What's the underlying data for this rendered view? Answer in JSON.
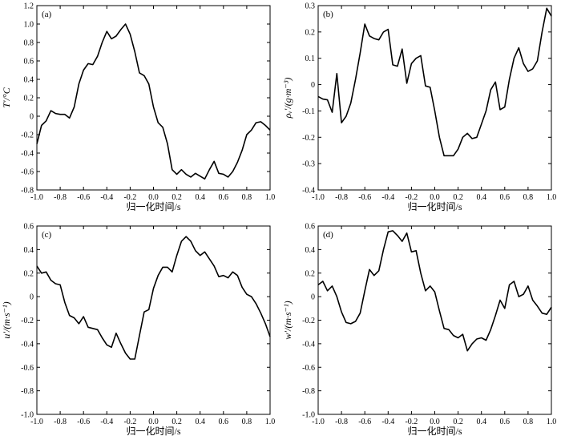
{
  "chart_data": [
    {
      "type": "line",
      "panel_label": "(a)",
      "xlabel": "归一化时间/s",
      "ylabel": "T′/°C",
      "xlim": [
        -1.0,
        1.0
      ],
      "ylim": [
        -0.8,
        1.2
      ],
      "xticks": [
        "-1.0",
        "-0.8",
        "-0.6",
        "-0.4",
        "-0.2",
        "0.0",
        "0.2",
        "0.4",
        "0.6",
        "0.8",
        "1.0"
      ],
      "yticks": [
        "-0.8",
        "-0.6",
        "-0.4",
        "-0.2",
        "0",
        "0.2",
        "0.4",
        "0.6",
        "0.8",
        "1.0",
        "1.2"
      ],
      "grid": false,
      "x": [
        -1.0,
        -0.96,
        -0.92,
        -0.88,
        -0.84,
        -0.8,
        -0.76,
        -0.72,
        -0.68,
        -0.64,
        -0.6,
        -0.56,
        -0.52,
        -0.48,
        -0.44,
        -0.4,
        -0.36,
        -0.32,
        -0.28,
        -0.24,
        -0.2,
        -0.16,
        -0.12,
        -0.08,
        -0.04,
        0.0,
        0.04,
        0.08,
        0.12,
        0.16,
        0.2,
        0.24,
        0.28,
        0.32,
        0.36,
        0.4,
        0.44,
        0.48,
        0.52,
        0.56,
        0.6,
        0.64,
        0.68,
        0.72,
        0.76,
        0.8,
        0.84,
        0.88,
        0.92,
        0.96,
        1.0
      ],
      "y": [
        -0.3,
        -0.1,
        -0.05,
        0.06,
        0.03,
        0.02,
        0.02,
        -0.02,
        0.1,
        0.35,
        0.5,
        0.57,
        0.56,
        0.65,
        0.8,
        0.92,
        0.84,
        0.87,
        0.94,
        1.0,
        0.89,
        0.7,
        0.47,
        0.44,
        0.35,
        0.1,
        -0.07,
        -0.12,
        -0.3,
        -0.58,
        -0.63,
        -0.58,
        -0.63,
        -0.66,
        -0.62,
        -0.65,
        -0.68,
        -0.58,
        -0.49,
        -0.62,
        -0.63,
        -0.66,
        -0.6,
        -0.5,
        -0.37,
        -0.2,
        -0.15,
        -0.07,
        -0.06,
        -0.1,
        -0.15
      ]
    },
    {
      "type": "line",
      "panel_label": "(b)",
      "xlabel": "归一化时间/s",
      "ylabel": "ρᵥ′/(g·m⁻³)",
      "xlim": [
        -1.0,
        1.0
      ],
      "ylim": [
        -0.4,
        0.3
      ],
      "xticks": [
        "-1.0",
        "-0.8",
        "-0.6",
        "-0.4",
        "-0.2",
        "0.0",
        "0.2",
        "0.4",
        "0.6",
        "0.8",
        "1.0"
      ],
      "yticks": [
        "-0.4",
        "-0.3",
        "-0.2",
        "-0.1",
        "0",
        "0.1",
        "0.2",
        "0.3"
      ],
      "grid": false,
      "x": [
        -1.0,
        -0.96,
        -0.92,
        -0.88,
        -0.84,
        -0.8,
        -0.76,
        -0.72,
        -0.68,
        -0.64,
        -0.6,
        -0.56,
        -0.52,
        -0.48,
        -0.44,
        -0.4,
        -0.36,
        -0.32,
        -0.28,
        -0.24,
        -0.2,
        -0.16,
        -0.12,
        -0.08,
        -0.04,
        0.0,
        0.04,
        0.08,
        0.12,
        0.16,
        0.2,
        0.24,
        0.28,
        0.32,
        0.36,
        0.4,
        0.44,
        0.48,
        0.52,
        0.56,
        0.6,
        0.64,
        0.68,
        0.72,
        0.76,
        0.8,
        0.84,
        0.88,
        0.92,
        0.96,
        1.0
      ],
      "y": [
        -0.045,
        -0.055,
        -0.058,
        -0.105,
        0.042,
        -0.145,
        -0.12,
        -0.07,
        0.02,
        0.12,
        0.23,
        0.185,
        0.175,
        0.17,
        0.2,
        0.21,
        0.075,
        0.07,
        0.135,
        0.005,
        0.08,
        0.1,
        0.11,
        -0.005,
        -0.01,
        -0.1,
        -0.2,
        -0.27,
        -0.27,
        -0.27,
        -0.245,
        -0.2,
        -0.185,
        -0.205,
        -0.2,
        -0.15,
        -0.1,
        -0.02,
        0.01,
        -0.095,
        -0.085,
        0.02,
        0.1,
        0.14,
        0.08,
        0.05,
        0.06,
        0.09,
        0.2,
        0.29,
        0.26
      ]
    },
    {
      "type": "line",
      "panel_label": "(c)",
      "xlabel": "归一化时间/s",
      "ylabel": "u′/(m·s⁻¹)",
      "xlim": [
        -1.0,
        1.0
      ],
      "ylim": [
        -1.0,
        0.6
      ],
      "xticks": [
        "-1.0",
        "-0.8",
        "-0.6",
        "-0.4",
        "-0.2",
        "0.0",
        "0.2",
        "0.4",
        "0.6",
        "0.8",
        "1.0"
      ],
      "yticks": [
        "-1.0",
        "-0.8",
        "-0.6",
        "-0.4",
        "-0.2",
        "0",
        "0.2",
        "0.4",
        "0.6"
      ],
      "grid": false,
      "x": [
        -1.0,
        -0.96,
        -0.92,
        -0.88,
        -0.84,
        -0.8,
        -0.76,
        -0.72,
        -0.68,
        -0.64,
        -0.6,
        -0.56,
        -0.52,
        -0.48,
        -0.44,
        -0.4,
        -0.36,
        -0.32,
        -0.28,
        -0.24,
        -0.2,
        -0.16,
        -0.12,
        -0.08,
        -0.04,
        0.0,
        0.04,
        0.08,
        0.12,
        0.16,
        0.2,
        0.24,
        0.28,
        0.32,
        0.36,
        0.4,
        0.44,
        0.48,
        0.52,
        0.56,
        0.6,
        0.64,
        0.68,
        0.72,
        0.76,
        0.8,
        0.84,
        0.88,
        0.92,
        0.96,
        1.0
      ],
      "y": [
        0.26,
        0.2,
        0.21,
        0.14,
        0.11,
        0.1,
        -0.05,
        -0.16,
        -0.18,
        -0.23,
        -0.17,
        -0.26,
        -0.27,
        -0.28,
        -0.35,
        -0.41,
        -0.43,
        -0.31,
        -0.4,
        -0.48,
        -0.53,
        -0.53,
        -0.33,
        -0.13,
        -0.11,
        0.07,
        0.18,
        0.25,
        0.25,
        0.21,
        0.35,
        0.47,
        0.51,
        0.47,
        0.39,
        0.35,
        0.38,
        0.32,
        0.26,
        0.17,
        0.18,
        0.16,
        0.21,
        0.18,
        0.08,
        0.02,
        0.0,
        -0.06,
        -0.14,
        -0.23,
        -0.34
      ]
    },
    {
      "type": "line",
      "panel_label": "(d)",
      "xlabel": "归一化时间/s",
      "ylabel": "w′/(m·s⁻¹)",
      "xlim": [
        -1.0,
        1.0
      ],
      "ylim": [
        -1.0,
        0.6
      ],
      "xticks": [
        "-1.0",
        "-0.8",
        "-0.6",
        "-0.4",
        "-0.2",
        "0.0",
        "0.2",
        "0.4",
        "0.6",
        "0.8",
        "1.0"
      ],
      "yticks": [
        "-1.0",
        "-0.8",
        "-0.6",
        "-0.4",
        "-0.2",
        "0",
        "0.2",
        "0.4",
        "0.6"
      ],
      "grid": false,
      "x": [
        -1.0,
        -0.96,
        -0.92,
        -0.88,
        -0.84,
        -0.8,
        -0.76,
        -0.72,
        -0.68,
        -0.64,
        -0.6,
        -0.56,
        -0.52,
        -0.48,
        -0.44,
        -0.4,
        -0.36,
        -0.32,
        -0.28,
        -0.24,
        -0.2,
        -0.16,
        -0.12,
        -0.08,
        -0.04,
        0.0,
        0.04,
        0.08,
        0.12,
        0.16,
        0.2,
        0.24,
        0.28,
        0.32,
        0.36,
        0.4,
        0.44,
        0.48,
        0.52,
        0.56,
        0.6,
        0.64,
        0.68,
        0.72,
        0.76,
        0.8,
        0.84,
        0.88,
        0.92,
        0.96,
        1.0
      ],
      "y": [
        0.1,
        0.13,
        0.05,
        0.09,
        0.0,
        -0.13,
        -0.22,
        -0.23,
        -0.21,
        -0.14,
        0.05,
        0.23,
        0.18,
        0.22,
        0.4,
        0.55,
        0.56,
        0.52,
        0.47,
        0.54,
        0.38,
        0.39,
        0.2,
        0.05,
        0.09,
        0.04,
        -0.12,
        -0.27,
        -0.28,
        -0.33,
        -0.35,
        -0.32,
        -0.46,
        -0.4,
        -0.36,
        -0.35,
        -0.37,
        -0.28,
        -0.16,
        -0.03,
        -0.1,
        0.1,
        0.13,
        0.0,
        0.02,
        0.09,
        -0.03,
        -0.08,
        -0.14,
        -0.15,
        -0.09
      ]
    }
  ]
}
